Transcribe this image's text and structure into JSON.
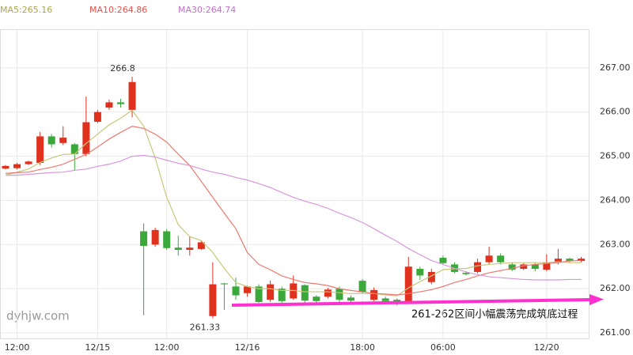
{
  "chart_data": {
    "type": "candlestick",
    "legend": [
      {
        "text": "MA5:265.16",
        "color": "#a8a84a"
      },
      {
        "text": "MA10:264.86",
        "color": "#e8504a"
      },
      {
        "text": "MA30:264.74",
        "color": "#c070c8"
      }
    ],
    "categories": [
      null,
      "12:00",
      null,
      null,
      null,
      null,
      null,
      null,
      "12/15",
      null,
      null,
      null,
      null,
      null,
      "12:00",
      null,
      null,
      null,
      null,
      null,
      null,
      "12/16",
      null,
      null,
      null,
      null,
      null,
      null,
      null,
      null,
      null,
      "18:00",
      null,
      null,
      null,
      null,
      null,
      null,
      "06:00",
      null,
      null,
      null,
      null,
      null,
      null,
      null,
      null,
      "12/20",
      null,
      null,
      null
    ],
    "open": [
      264.72,
      264.73,
      264.82,
      264.85,
      265.45,
      265.3,
      265.27,
      265.05,
      265.78,
      266.1,
      266.22,
      266.05,
      263.3,
      263.0,
      263.3,
      262.93,
      262.88,
      262.9,
      261.38,
      262.12,
      262.05,
      261.9,
      262.05,
      261.75,
      262.0,
      261.78,
      262.08,
      261.82,
      261.82,
      262.0,
      261.8,
      262.18,
      261.75,
      261.78,
      261.75,
      261.68,
      262.45,
      262.15,
      262.7,
      262.55,
      262.36,
      262.38,
      262.6,
      262.75,
      262.55,
      262.45,
      262.55,
      262.43,
      262.6,
      262.68,
      262.63
    ],
    "high": [
      264.8,
      264.85,
      264.9,
      265.55,
      265.5,
      265.68,
      265.3,
      266.35,
      266.05,
      266.28,
      266.3,
      266.8,
      263.48,
      263.38,
      263.35,
      263.2,
      263.18,
      263.08,
      262.6,
      262.13,
      262.25,
      262.07,
      262.1,
      262.18,
      262.05,
      262.3,
      262.1,
      261.85,
      262.02,
      262.05,
      261.85,
      262.22,
      262.03,
      261.82,
      261.78,
      262.72,
      262.5,
      262.45,
      262.75,
      262.6,
      262.4,
      262.68,
      262.95,
      262.8,
      262.6,
      262.58,
      262.6,
      262.78,
      262.9,
      262.7,
      262.72
    ],
    "low": [
      264.7,
      264.7,
      264.8,
      264.8,
      265.2,
      265.25,
      264.67,
      265.0,
      265.75,
      266.05,
      266.1,
      265.88,
      261.4,
      262.95,
      262.88,
      262.75,
      262.75,
      262.88,
      261.33,
      261.52,
      261.75,
      261.82,
      261.68,
      261.7,
      261.68,
      261.75,
      261.65,
      261.68,
      261.78,
      261.7,
      261.7,
      261.88,
      261.72,
      261.68,
      261.62,
      261.65,
      262.2,
      262.1,
      262.55,
      262.35,
      262.3,
      262.35,
      262.55,
      262.55,
      262.4,
      262.42,
      262.4,
      262.4,
      262.55,
      262.6,
      262.6
    ],
    "close": [
      264.78,
      264.82,
      264.88,
      265.45,
      265.27,
      265.42,
      265.05,
      265.77,
      266.0,
      266.22,
      266.18,
      266.68,
      262.97,
      263.33,
      262.92,
      262.88,
      262.93,
      263.05,
      262.1,
      262.1,
      261.85,
      262.05,
      261.7,
      262.1,
      261.72,
      262.12,
      261.73,
      261.72,
      261.98,
      261.75,
      261.73,
      261.92,
      261.97,
      261.72,
      261.65,
      262.5,
      262.3,
      262.38,
      262.58,
      262.38,
      262.33,
      262.6,
      262.75,
      262.6,
      262.43,
      262.55,
      262.45,
      262.6,
      262.68,
      262.63,
      262.68
    ],
    "up_color": "#e0301e",
    "down_color": "#3aa83a",
    "series": [
      {
        "name": "MA5",
        "color": "#c8c878",
        "values": [
          264.57,
          264.64,
          264.71,
          264.86,
          264.96,
          265.04,
          265.05,
          265.29,
          265.5,
          265.71,
          265.86,
          266.04,
          265.68,
          264.96,
          264.07,
          263.45,
          263.18,
          263.09,
          262.82,
          262.46,
          262.14,
          262.05,
          262.0,
          262.0,
          261.96,
          261.96,
          261.93,
          261.93,
          261.93,
          261.91,
          261.89,
          261.89,
          261.89,
          261.86,
          261.84,
          262.02,
          262.16,
          262.29,
          262.43,
          262.45,
          262.46,
          262.52,
          262.55,
          262.57,
          262.59,
          262.59,
          262.59,
          262.59,
          262.61,
          262.59,
          262.59
        ]
      },
      {
        "name": "MA10",
        "color": "#f07870",
        "values": [
          264.61,
          264.63,
          264.64,
          264.7,
          264.75,
          264.82,
          264.93,
          265.04,
          265.21,
          265.39,
          265.54,
          265.68,
          265.63,
          265.5,
          265.32,
          265.05,
          264.79,
          264.43,
          264.07,
          263.71,
          263.36,
          262.82,
          262.55,
          262.43,
          262.29,
          262.21,
          262.14,
          262.11,
          262.07,
          262.0,
          261.96,
          261.93,
          261.89,
          261.88,
          261.86,
          261.89,
          261.93,
          261.98,
          262.05,
          262.14,
          262.21,
          262.29,
          262.36,
          262.41,
          262.46,
          262.52,
          262.55,
          262.57,
          262.59,
          262.63,
          262.64
        ]
      },
      {
        "name": "MA30",
        "color": "#d898dc",
        "values": [
          264.57,
          264.57,
          264.59,
          264.61,
          264.63,
          264.64,
          264.68,
          264.71,
          264.77,
          264.82,
          264.89,
          265.0,
          265.02,
          264.98,
          264.91,
          264.84,
          264.79,
          264.71,
          264.64,
          264.59,
          264.52,
          264.46,
          264.38,
          264.29,
          264.18,
          264.07,
          263.98,
          263.91,
          263.82,
          263.71,
          263.61,
          263.5,
          263.36,
          263.21,
          263.07,
          262.91,
          262.77,
          262.64,
          262.55,
          262.46,
          262.38,
          262.32,
          262.27,
          262.25,
          262.23,
          262.21,
          262.2,
          262.2,
          262.2,
          262.21,
          262.21
        ]
      }
    ],
    "ylim": [
      260.875,
      267.875
    ],
    "yticks": [
      {
        "value": 261,
        "label": "261.00"
      },
      {
        "value": 262,
        "label": "262.00"
      },
      {
        "value": 263,
        "label": "263.00"
      },
      {
        "value": 264,
        "label": "264.00"
      },
      {
        "value": 265,
        "label": "265.00"
      },
      {
        "value": 266,
        "label": "266.00"
      },
      {
        "value": 267,
        "label": "267.00"
      }
    ],
    "grid": true,
    "annotations": [
      "266.8",
      "261.33",
      "dyhjw.com",
      "261-262区间小幅震荡完成筑底过程"
    ]
  }
}
